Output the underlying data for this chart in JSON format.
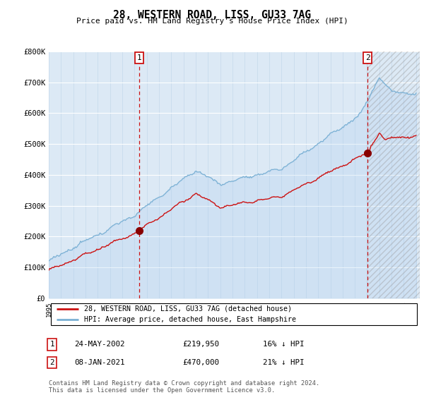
{
  "title": "28, WESTERN ROAD, LISS, GU33 7AG",
  "subtitle": "Price paid vs. HM Land Registry's House Price Index (HPI)",
  "background_color": "#dce9f5",
  "plot_bg_color": "#dce9f5",
  "hpi_color": "#7ab0d4",
  "price_color": "#cc1111",
  "ylim": [
    0,
    800000
  ],
  "yticks": [
    0,
    100000,
    200000,
    300000,
    400000,
    500000,
    600000,
    700000,
    800000
  ],
  "ytick_labels": [
    "£0",
    "£100K",
    "£200K",
    "£300K",
    "£400K",
    "£500K",
    "£600K",
    "£700K",
    "£800K"
  ],
  "xstart_year": 1995,
  "xend_year": 2025,
  "t1_year": 2002.38,
  "t1_price": 219950,
  "t2_year": 2021.04,
  "t2_price": 470000,
  "legend_label1": "28, WESTERN ROAD, LISS, GU33 7AG (detached house)",
  "legend_label2": "HPI: Average price, detached house, East Hampshire",
  "note1_text": "24-MAY-2002",
  "note1_price": "£219,950",
  "note1_hpi": "16% ↓ HPI",
  "note2_text": "08-JAN-2021",
  "note2_price": "£470,000",
  "note2_hpi": "21% ↓ HPI",
  "footer": "Contains HM Land Registry data © Crown copyright and database right 2024.\nThis data is licensed under the Open Government Licence v3.0."
}
